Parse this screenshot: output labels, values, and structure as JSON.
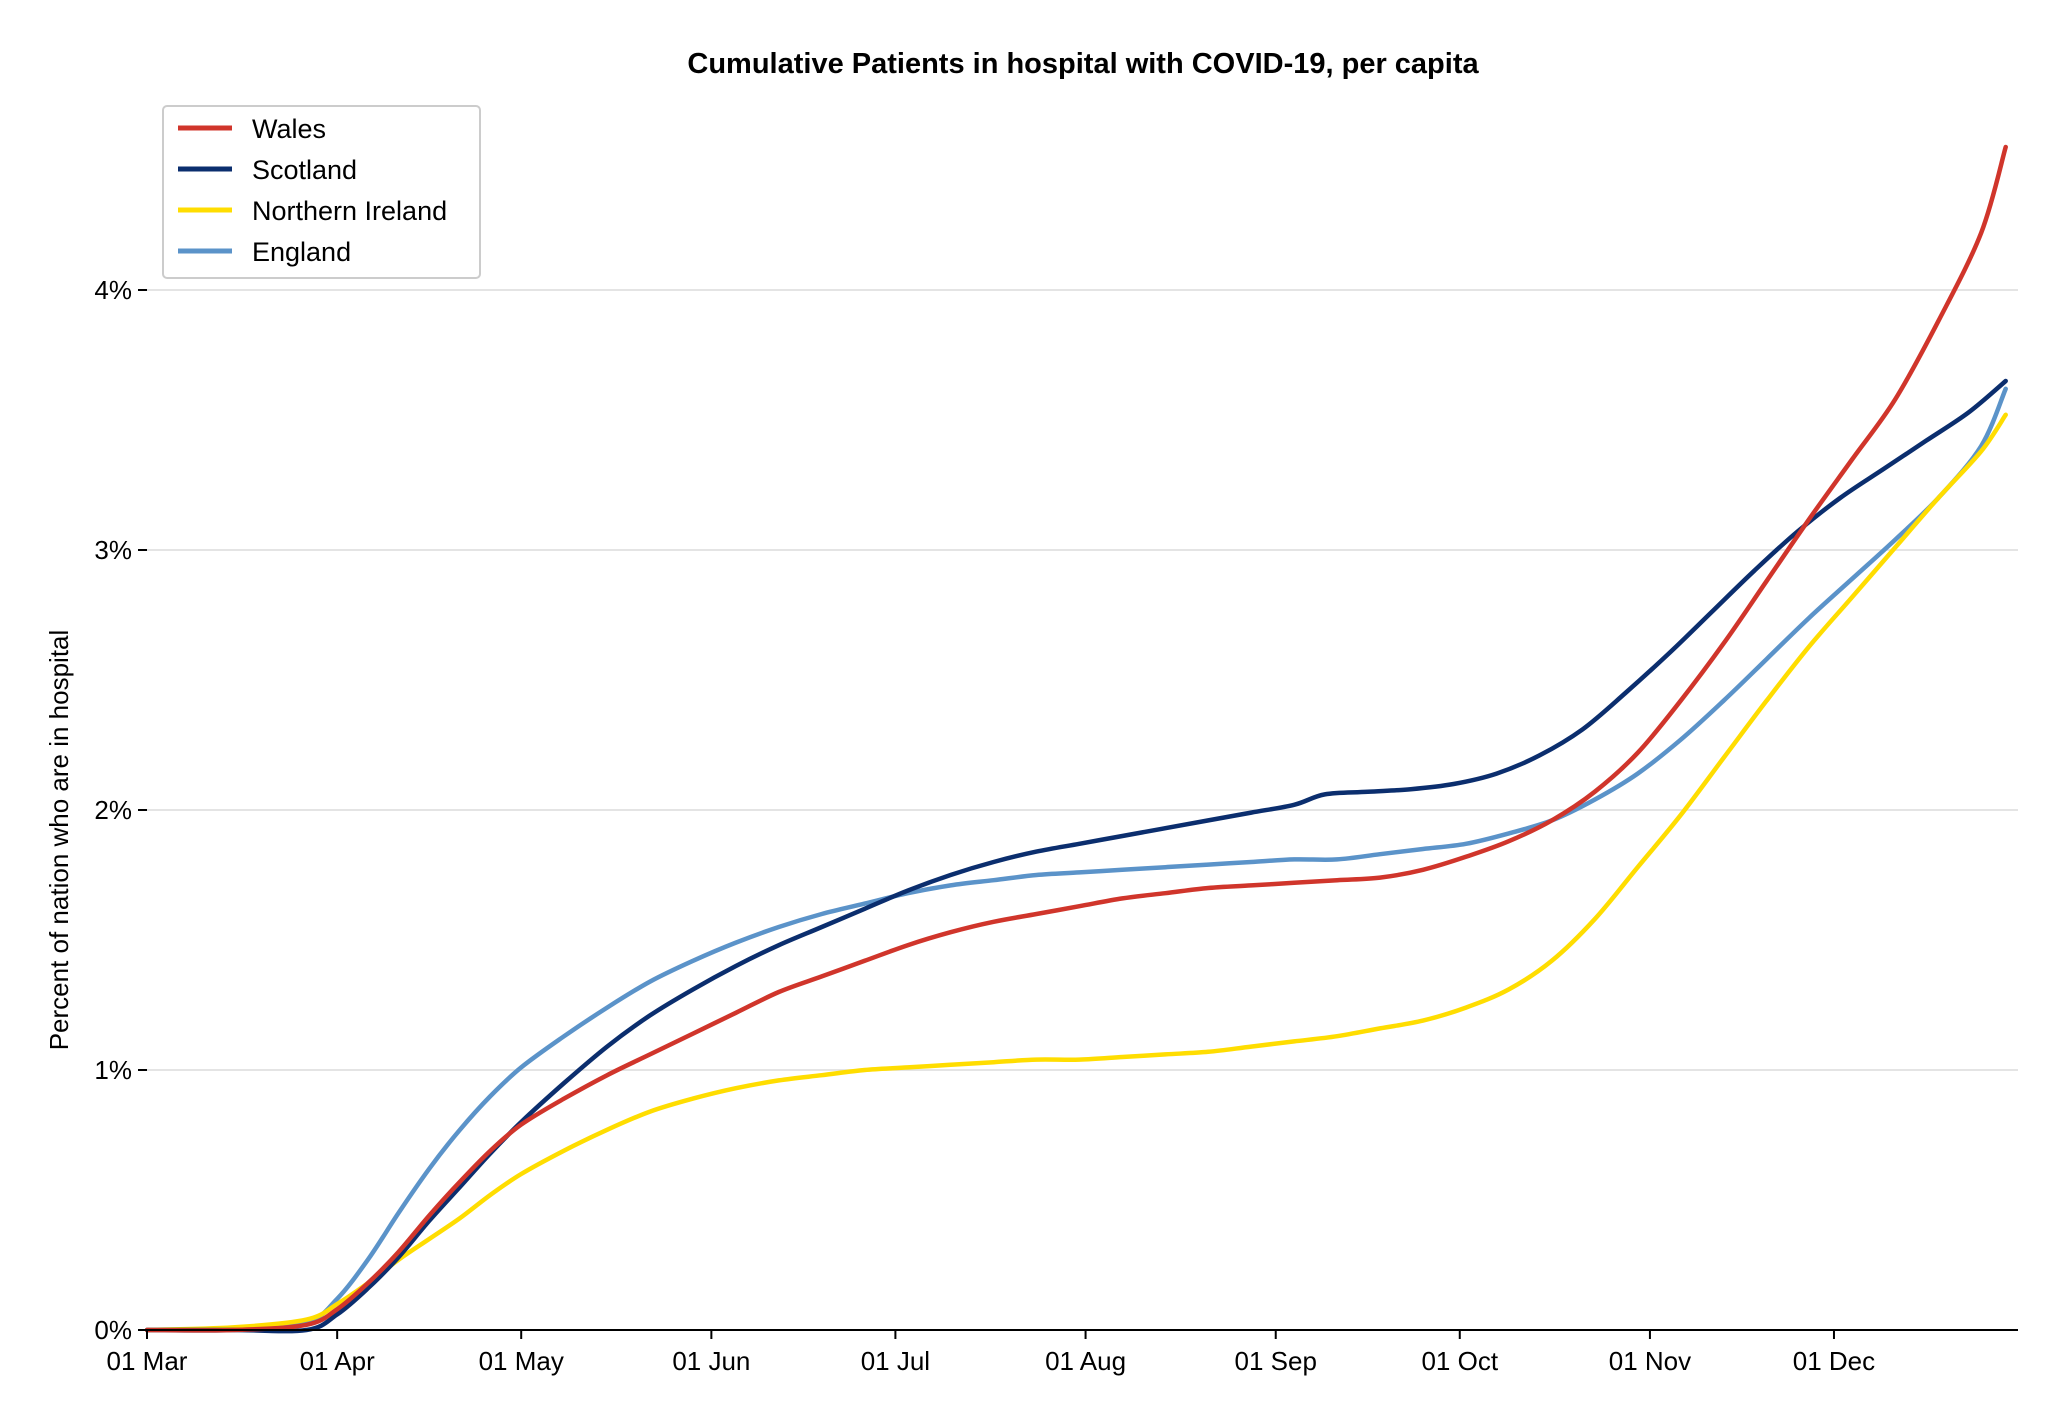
{
  "chart_data": {
    "type": "line",
    "title": "Cumulative Patients in hospital with COVID-19, per capita",
    "xlabel": "",
    "ylabel": "Percent of nation who are in hospital",
    "x_start": "2020-03-01",
    "x_end": "2020-12-31",
    "ylim": [
      0,
      4.8
    ],
    "y_ticks": [
      0,
      1,
      2,
      3,
      4
    ],
    "y_tick_labels": [
      "0%",
      "1%",
      "2%",
      "3%",
      "4%"
    ],
    "x_ticks": [
      "2020-03-01",
      "2020-04-01",
      "2020-05-01",
      "2020-06-01",
      "2020-07-01",
      "2020-08-01",
      "2020-09-01",
      "2020-10-01",
      "2020-11-01",
      "2020-12-01"
    ],
    "x_tick_labels": [
      "01 Mar",
      "01 Apr",
      "01 May",
      "01 Jun",
      "01 Jul",
      "01 Aug",
      "01 Sep",
      "01 Oct",
      "01 Nov",
      "01 Dec"
    ],
    "grid": "horizontal",
    "legend_position": "top-left",
    "series": [
      {
        "name": "Wales",
        "color": "#d0352b",
        "points": [
          [
            "2020-03-01",
            0
          ],
          [
            "2020-03-15",
            0
          ],
          [
            "2020-03-27",
            0.02
          ],
          [
            "2020-04-01",
            0.08
          ],
          [
            "2020-04-06",
            0.18
          ],
          [
            "2020-04-11",
            0.3
          ],
          [
            "2020-04-16",
            0.44
          ],
          [
            "2020-04-21",
            0.57
          ],
          [
            "2020-04-26",
            0.69
          ],
          [
            "2020-05-01",
            0.79
          ],
          [
            "2020-05-08",
            0.89
          ],
          [
            "2020-05-15",
            0.98
          ],
          [
            "2020-05-22",
            1.06
          ],
          [
            "2020-05-29",
            1.14
          ],
          [
            "2020-06-05",
            1.22
          ],
          [
            "2020-06-12",
            1.3
          ],
          [
            "2020-06-19",
            1.36
          ],
          [
            "2020-06-26",
            1.42
          ],
          [
            "2020-07-03",
            1.48
          ],
          [
            "2020-07-10",
            1.53
          ],
          [
            "2020-07-17",
            1.57
          ],
          [
            "2020-07-24",
            1.6
          ],
          [
            "2020-07-31",
            1.63
          ],
          [
            "2020-08-07",
            1.66
          ],
          [
            "2020-08-14",
            1.68
          ],
          [
            "2020-08-21",
            1.7
          ],
          [
            "2020-08-28",
            1.71
          ],
          [
            "2020-09-04",
            1.72
          ],
          [
            "2020-09-11",
            1.73
          ],
          [
            "2020-09-18",
            1.74
          ],
          [
            "2020-09-25",
            1.77
          ],
          [
            "2020-10-02",
            1.82
          ],
          [
            "2020-10-09",
            1.88
          ],
          [
            "2020-10-16",
            1.96
          ],
          [
            "2020-10-23",
            2.07
          ],
          [
            "2020-10-30",
            2.22
          ],
          [
            "2020-11-06",
            2.42
          ],
          [
            "2020-11-13",
            2.64
          ],
          [
            "2020-11-20",
            2.88
          ],
          [
            "2020-11-27",
            3.12
          ],
          [
            "2020-12-04",
            3.35
          ],
          [
            "2020-12-11",
            3.58
          ],
          [
            "2020-12-18",
            3.88
          ],
          [
            "2020-12-25",
            4.22
          ],
          [
            "2020-12-29",
            4.55
          ]
        ]
      },
      {
        "name": "Scotland",
        "color": "#0b2e6e",
        "points": [
          [
            "2020-03-01",
            0
          ],
          [
            "2020-03-15",
            0
          ],
          [
            "2020-03-27",
            0.0
          ],
          [
            "2020-04-01",
            0.06
          ],
          [
            "2020-04-06",
            0.16
          ],
          [
            "2020-04-11",
            0.28
          ],
          [
            "2020-04-16",
            0.42
          ],
          [
            "2020-04-21",
            0.55
          ],
          [
            "2020-04-26",
            0.68
          ],
          [
            "2020-05-01",
            0.8
          ],
          [
            "2020-05-08",
            0.95
          ],
          [
            "2020-05-15",
            1.09
          ],
          [
            "2020-05-22",
            1.21
          ],
          [
            "2020-05-29",
            1.31
          ],
          [
            "2020-06-05",
            1.4
          ],
          [
            "2020-06-12",
            1.48
          ],
          [
            "2020-06-19",
            1.55
          ],
          [
            "2020-06-26",
            1.62
          ],
          [
            "2020-07-03",
            1.69
          ],
          [
            "2020-07-10",
            1.75
          ],
          [
            "2020-07-17",
            1.8
          ],
          [
            "2020-07-24",
            1.84
          ],
          [
            "2020-07-31",
            1.87
          ],
          [
            "2020-08-07",
            1.9
          ],
          [
            "2020-08-14",
            1.93
          ],
          [
            "2020-08-21",
            1.96
          ],
          [
            "2020-08-28",
            1.99
          ],
          [
            "2020-09-04",
            2.02
          ],
          [
            "2020-09-09",
            2.06
          ],
          [
            "2020-09-16",
            2.07
          ],
          [
            "2020-09-23",
            2.08
          ],
          [
            "2020-09-30",
            2.1
          ],
          [
            "2020-10-07",
            2.14
          ],
          [
            "2020-10-14",
            2.21
          ],
          [
            "2020-10-21",
            2.31
          ],
          [
            "2020-10-28",
            2.45
          ],
          [
            "2020-11-04",
            2.6
          ],
          [
            "2020-11-11",
            2.76
          ],
          [
            "2020-11-18",
            2.92
          ],
          [
            "2020-11-25",
            3.07
          ],
          [
            "2020-12-02",
            3.2
          ],
          [
            "2020-12-09",
            3.31
          ],
          [
            "2020-12-16",
            3.42
          ],
          [
            "2020-12-23",
            3.53
          ],
          [
            "2020-12-29",
            3.65
          ]
        ]
      },
      {
        "name": "Northern Ireland",
        "color": "#ffdd00",
        "points": [
          [
            "2020-03-01",
            0
          ],
          [
            "2020-03-15",
            0.01
          ],
          [
            "2020-03-27",
            0.04
          ],
          [
            "2020-04-01",
            0.1
          ],
          [
            "2020-04-06",
            0.18
          ],
          [
            "2020-04-11",
            0.27
          ],
          [
            "2020-04-16",
            0.35
          ],
          [
            "2020-04-21",
            0.43
          ],
          [
            "2020-04-26",
            0.52
          ],
          [
            "2020-05-01",
            0.6
          ],
          [
            "2020-05-08",
            0.69
          ],
          [
            "2020-05-15",
            0.77
          ],
          [
            "2020-05-22",
            0.84
          ],
          [
            "2020-05-29",
            0.89
          ],
          [
            "2020-06-05",
            0.93
          ],
          [
            "2020-06-12",
            0.96
          ],
          [
            "2020-06-19",
            0.98
          ],
          [
            "2020-06-26",
            1.0
          ],
          [
            "2020-07-03",
            1.01
          ],
          [
            "2020-07-10",
            1.02
          ],
          [
            "2020-07-17",
            1.03
          ],
          [
            "2020-07-24",
            1.04
          ],
          [
            "2020-07-31",
            1.04
          ],
          [
            "2020-08-07",
            1.05
          ],
          [
            "2020-08-14",
            1.06
          ],
          [
            "2020-08-21",
            1.07
          ],
          [
            "2020-08-28",
            1.09
          ],
          [
            "2020-09-04",
            1.11
          ],
          [
            "2020-09-11",
            1.13
          ],
          [
            "2020-09-18",
            1.16
          ],
          [
            "2020-09-25",
            1.19
          ],
          [
            "2020-10-02",
            1.24
          ],
          [
            "2020-10-09",
            1.31
          ],
          [
            "2020-10-16",
            1.42
          ],
          [
            "2020-10-23",
            1.58
          ],
          [
            "2020-10-30",
            1.78
          ],
          [
            "2020-11-06",
            1.98
          ],
          [
            "2020-11-13",
            2.2
          ],
          [
            "2020-11-20",
            2.42
          ],
          [
            "2020-11-27",
            2.63
          ],
          [
            "2020-12-04",
            2.82
          ],
          [
            "2020-12-11",
            3.01
          ],
          [
            "2020-12-18",
            3.2
          ],
          [
            "2020-12-25",
            3.38
          ],
          [
            "2020-12-29",
            3.52
          ]
        ]
      },
      {
        "name": "England",
        "color": "#5b93c9",
        "points": [
          [
            "2020-03-01",
            0
          ],
          [
            "2020-03-15",
            0.0
          ],
          [
            "2020-03-27",
            0.03
          ],
          [
            "2020-04-01",
            0.12
          ],
          [
            "2020-04-06",
            0.27
          ],
          [
            "2020-04-11",
            0.45
          ],
          [
            "2020-04-16",
            0.62
          ],
          [
            "2020-04-21",
            0.77
          ],
          [
            "2020-04-26",
            0.9
          ],
          [
            "2020-05-01",
            1.01
          ],
          [
            "2020-05-08",
            1.13
          ],
          [
            "2020-05-15",
            1.24
          ],
          [
            "2020-05-22",
            1.34
          ],
          [
            "2020-05-29",
            1.42
          ],
          [
            "2020-06-05",
            1.49
          ],
          [
            "2020-06-12",
            1.55
          ],
          [
            "2020-06-19",
            1.6
          ],
          [
            "2020-06-26",
            1.64
          ],
          [
            "2020-07-03",
            1.68
          ],
          [
            "2020-07-10",
            1.71
          ],
          [
            "2020-07-17",
            1.73
          ],
          [
            "2020-07-24",
            1.75
          ],
          [
            "2020-07-31",
            1.76
          ],
          [
            "2020-08-07",
            1.77
          ],
          [
            "2020-08-14",
            1.78
          ],
          [
            "2020-08-21",
            1.79
          ],
          [
            "2020-08-28",
            1.8
          ],
          [
            "2020-09-04",
            1.81
          ],
          [
            "2020-09-11",
            1.81
          ],
          [
            "2020-09-18",
            1.83
          ],
          [
            "2020-09-25",
            1.85
          ],
          [
            "2020-10-02",
            1.87
          ],
          [
            "2020-10-09",
            1.91
          ],
          [
            "2020-10-16",
            1.96
          ],
          [
            "2020-10-23",
            2.04
          ],
          [
            "2020-10-30",
            2.14
          ],
          [
            "2020-11-06",
            2.27
          ],
          [
            "2020-11-13",
            2.42
          ],
          [
            "2020-11-20",
            2.58
          ],
          [
            "2020-11-27",
            2.74
          ],
          [
            "2020-12-04",
            2.89
          ],
          [
            "2020-12-11",
            3.04
          ],
          [
            "2020-12-18",
            3.2
          ],
          [
            "2020-12-25",
            3.4
          ],
          [
            "2020-12-29",
            3.62
          ]
        ]
      }
    ]
  }
}
